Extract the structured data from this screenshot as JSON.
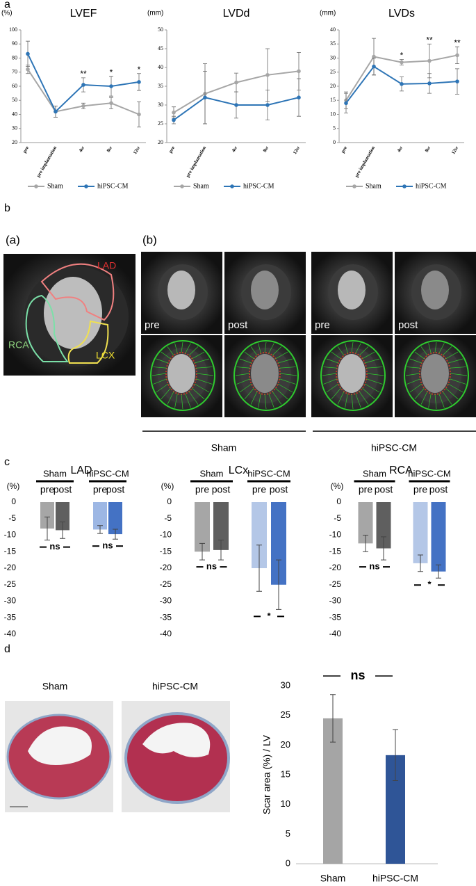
{
  "panel_labels": [
    "a",
    "b",
    "c",
    "d"
  ],
  "panel_b": {
    "a_label": "(a)",
    "b_label": "(b)",
    "regions": [
      "LAD",
      "RCA",
      "LCX"
    ],
    "timepoints": [
      "pre",
      "post",
      "pre",
      "post"
    ],
    "groups": [
      "Sham",
      "hiPSC-CM"
    ]
  },
  "panel_d": {
    "images": [
      "Sham",
      "hiPSC-CM"
    ]
  },
  "chart_data": [
    {
      "type": "line",
      "title": "LVEF",
      "y_label": "(%)",
      "categories": [
        "pre",
        "pre implantation",
        "4w",
        "8w",
        "12w"
      ],
      "series": [
        {
          "name": "Sham",
          "color": "#a6a6a6",
          "values": [
            72,
            42,
            46,
            48,
            40
          ],
          "errors": [
            3,
            4,
            2,
            4,
            9
          ]
        },
        {
          "name": "hiPSC-CM",
          "color": "#2e75b6",
          "values": [
            83,
            42,
            61,
            60,
            63
          ],
          "errors": [
            9,
            4,
            5,
            7,
            6
          ]
        }
      ],
      "significance": [
        null,
        null,
        "**",
        "*",
        "*"
      ],
      "ylim": [
        20,
        100
      ],
      "yticks": [
        20,
        30,
        40,
        50,
        60,
        70,
        80,
        90,
        100
      ]
    },
    {
      "type": "line",
      "title": "LVDd",
      "y_label": "(mm)",
      "categories": [
        "pre",
        "pre implantation",
        "4w",
        "8w",
        "12w"
      ],
      "series": [
        {
          "name": "Sham",
          "color": "#a6a6a6",
          "values": [
            28,
            33,
            36,
            38,
            39
          ],
          "errors": [
            1.5,
            8,
            2.5,
            7,
            5
          ]
        },
        {
          "name": "hiPSC-CM",
          "color": "#2e75b6",
          "values": [
            26,
            32,
            30,
            30,
            32
          ],
          "errors": [
            1,
            7,
            3.5,
            4,
            5
          ]
        }
      ],
      "ylim": [
        20,
        50
      ],
      "yticks": [
        20,
        25,
        30,
        35,
        40,
        45,
        50
      ]
    },
    {
      "type": "line",
      "title": "LVDs",
      "y_label": "(mm)",
      "categories": [
        "pre",
        "pre implantation",
        "4w",
        "8w",
        "12w"
      ],
      "series": [
        {
          "name": "Sham",
          "color": "#a6a6a6",
          "values": [
            15,
            30.5,
            28.5,
            29,
            31
          ],
          "errors": [
            3,
            6.5,
            1,
            6,
            3
          ]
        },
        {
          "name": "hiPSC-CM",
          "color": "#2e75b6",
          "values": [
            14,
            27,
            20.8,
            21,
            21.7
          ],
          "errors": [
            3.5,
            3,
            2.5,
            3.5,
            4.5
          ]
        }
      ],
      "significance": [
        null,
        null,
        "*",
        "**",
        "**"
      ],
      "ylim": [
        0,
        40
      ],
      "yticks": [
        0,
        5,
        10,
        15,
        20,
        25,
        30,
        35,
        40
      ]
    },
    {
      "type": "bar",
      "title": "LAD",
      "y_label": "(%)",
      "groups": [
        "Sham",
        "hiPSC-CM"
      ],
      "categories": [
        "pre",
        "post",
        "pre",
        "post"
      ],
      "values": [
        -8,
        -8.5,
        -8.3,
        -9.7
      ],
      "errors": [
        3.5,
        2.5,
        1.2,
        1.5
      ],
      "colors": [
        "#a6a6a6",
        "#5f5f5f",
        "#9db7e4",
        "#4472c4"
      ],
      "significance": [
        "ns",
        "ns"
      ],
      "ylim": [
        -40,
        0
      ],
      "yticks": [
        0,
        -5,
        -10,
        -15,
        -20,
        -25,
        -30,
        -35,
        -40
      ]
    },
    {
      "type": "bar",
      "title": "LCx",
      "y_label": "(%)",
      "groups": [
        "Sham",
        "hiPSC-CM"
      ],
      "categories": [
        "pre",
        "post",
        "pre",
        "post"
      ],
      "values": [
        -15,
        -14.5,
        -20,
        -25
      ],
      "errors": [
        2.5,
        3,
        7,
        7.5
      ],
      "colors": [
        "#a6a6a6",
        "#5f5f5f",
        "#b4c7e7",
        "#4472c4"
      ],
      "significance": [
        "ns",
        "*"
      ],
      "ylim": [
        -40,
        0
      ],
      "yticks": [
        0,
        -5,
        -10,
        -15,
        -20,
        -25,
        -30,
        -35,
        -40
      ]
    },
    {
      "type": "bar",
      "title": "RCA",
      "y_label": "(%)",
      "groups": [
        "Sham",
        "hiPSC-CM"
      ],
      "categories": [
        "pre",
        "post",
        "pre",
        "post"
      ],
      "values": [
        -12.5,
        -14,
        -18.5,
        -21
      ],
      "errors": [
        2.5,
        3.5,
        2.5,
        2
      ],
      "colors": [
        "#a6a6a6",
        "#5f5f5f",
        "#b4c7e7",
        "#4472c4"
      ],
      "significance": [
        "ns",
        "*"
      ],
      "ylim": [
        -40,
        0
      ],
      "yticks": [
        0,
        -5,
        -10,
        -15,
        -20,
        -25,
        -30,
        -35,
        -40
      ]
    },
    {
      "type": "bar",
      "y_label": "Scar area (%) / LV",
      "categories": [
        "Sham",
        "hiPSC-CM"
      ],
      "values": [
        24.5,
        18.3
      ],
      "errors": [
        4,
        4.3
      ],
      "colors": [
        "#a5a5a5",
        "#2f5597"
      ],
      "annotation": "ns",
      "ylim": [
        0,
        30
      ],
      "yticks": [
        0,
        5,
        10,
        15,
        20,
        25,
        30
      ]
    }
  ]
}
